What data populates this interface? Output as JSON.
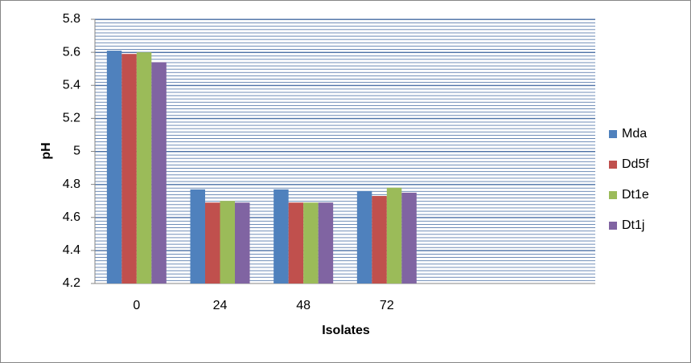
{
  "chart_data": {
    "type": "bar",
    "x_label": "Isolates",
    "y_label": "pH",
    "categories": [
      "0",
      "24",
      "48",
      "72",
      null,
      null
    ],
    "series": [
      {
        "name": "Mda",
        "color": "#4f81bd",
        "values": [
          5.61,
          4.77,
          4.77,
          4.76,
          null,
          null
        ]
      },
      {
        "name": "Dd5f",
        "color": "#c0504d",
        "values": [
          5.59,
          4.69,
          4.69,
          4.73,
          null,
          null
        ]
      },
      {
        "name": "Dt1e",
        "color": "#9bbb59",
        "values": [
          5.6,
          4.7,
          4.69,
          4.78,
          null,
          null
        ]
      },
      {
        "name": "Dt1j",
        "color": "#8064a2",
        "values": [
          5.54,
          4.69,
          4.69,
          4.75,
          null,
          null
        ]
      }
    ],
    "ylim": [
      4.2,
      5.8
    ],
    "yticks": [
      4.2,
      4.4,
      4.6,
      4.8,
      5,
      5.2,
      5.4,
      5.6,
      5.8
    ],
    "grid": true,
    "legend": "right"
  }
}
